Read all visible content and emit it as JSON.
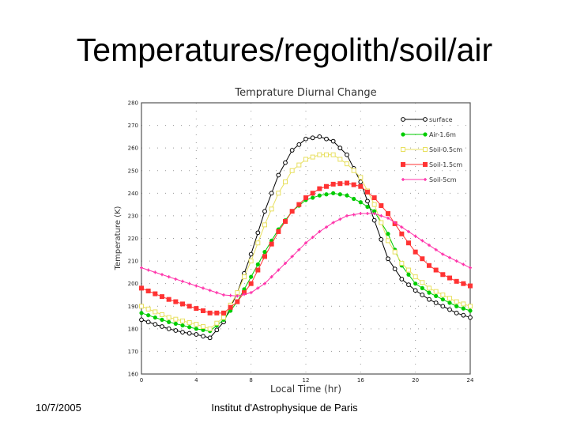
{
  "slide": {
    "title": "Temperatures/regolith/soil/air",
    "date": "10/7/2005",
    "institution": "Institut d'Astrophysique de Paris"
  },
  "chart_data": {
    "type": "line",
    "title": "Temprature Diurnal Change",
    "xlabel": "Local Time (hr)",
    "ylabel": "Temperature (K)",
    "xlim": [
      0,
      24
    ],
    "ylim": [
      160,
      280
    ],
    "xticks": [
      0,
      4,
      8,
      12,
      16,
      20,
      24
    ],
    "yticks": [
      160,
      170,
      180,
      190,
      200,
      210,
      220,
      230,
      240,
      250,
      260,
      270,
      280
    ],
    "grid": true,
    "legend_position": "top-right",
    "x": [
      0,
      1,
      2,
      3,
      4,
      5,
      6,
      7,
      8,
      9,
      10,
      11,
      12,
      13,
      14,
      15,
      16,
      17,
      18,
      19,
      20,
      21,
      22,
      23,
      24
    ],
    "series": [
      {
        "name": "surface",
        "color": "#000000",
        "marker": "open-circle",
        "values": [
          184,
          182,
          180,
          178.5,
          177.5,
          176,
          183,
          196,
          213,
          232,
          248,
          259,
          264,
          265,
          263,
          257,
          245,
          228,
          211,
          202,
          197,
          193,
          190,
          187,
          185
        ]
      },
      {
        "name": "Air-1.6m",
        "color": "#00cc00",
        "marker": "filled-circle",
        "values": [
          187,
          185,
          183,
          181.5,
          180,
          179,
          184,
          192,
          203,
          214,
          224,
          232,
          237,
          239,
          240,
          239,
          236,
          232,
          222,
          208,
          200,
          196,
          193,
          190,
          188
        ]
      },
      {
        "name": "Soil-0.5cm",
        "color": "#e8e060",
        "marker": "open-square",
        "values": [
          190,
          187.5,
          185,
          183.5,
          182,
          180,
          185,
          196,
          210,
          226,
          240,
          250,
          255,
          257,
          257,
          253,
          247,
          235,
          219,
          209,
          203,
          198,
          195,
          192,
          190
        ]
      },
      {
        "name": "Soil-1.5cm",
        "color": "#ff3333",
        "marker": "filled-square",
        "values": [
          198,
          195.5,
          193,
          191,
          189,
          187,
          187,
          192,
          200,
          212,
          223,
          232,
          238,
          242,
          244,
          244.5,
          243,
          238,
          231,
          222,
          214,
          208,
          204,
          201,
          199
        ]
      },
      {
        "name": "Soil-5cm",
        "color": "#ff33aa",
        "marker": "cross",
        "values": [
          207,
          205,
          203,
          201,
          199,
          197,
          195,
          194.5,
          196,
          200,
          206,
          212,
          218,
          223,
          227,
          230,
          231,
          231,
          229,
          225,
          221,
          217,
          213,
          210,
          207
        ]
      }
    ]
  }
}
